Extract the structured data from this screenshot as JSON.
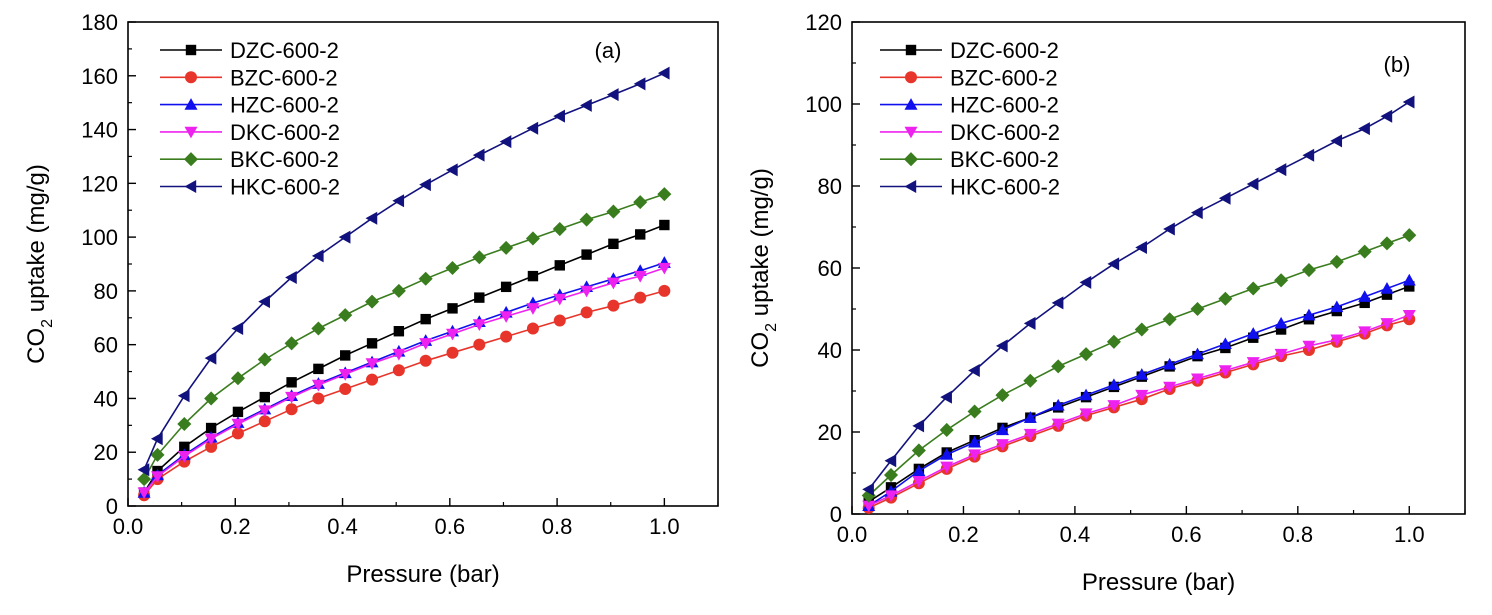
{
  "colors": {
    "DZC-600-2": "#000000",
    "BZC-600-2": "#e8352b",
    "HZC-600-2": "#1010ee",
    "DKC-600-2": "#ee22ee",
    "BKC-600-2": "#3a7d1e",
    "HKC-600-2": "#12127e"
  },
  "markers": {
    "DZC-600-2": "square",
    "BZC-600-2": "circle",
    "HZC-600-2": "triangle-up",
    "DKC-600-2": "triangle-down",
    "BKC-600-2": "diamond",
    "HKC-600-2": "triangle-left"
  },
  "chart_data": [
    {
      "type": "line",
      "panel_label": "(a)",
      "xlabel": "Pressure (bar)",
      "ylabel_main": "CO",
      "ylabel_sub": "2",
      "ylabel_rest": " uptake (mg/g)",
      "xlim": [
        0.0,
        1.1
      ],
      "ylim": [
        0,
        180
      ],
      "xticks": [
        0.0,
        0.2,
        0.4,
        0.6,
        0.8,
        1.0
      ],
      "xtick_labels": [
        "0.0",
        "0.2",
        "0.4",
        "0.6",
        "0.8",
        "1.0"
      ],
      "yticks": [
        0,
        20,
        40,
        60,
        80,
        100,
        120,
        140,
        160,
        180
      ],
      "ytick_labels": [
        "0",
        "20",
        "40",
        "60",
        "80",
        "100",
        "120",
        "140",
        "160",
        "180"
      ],
      "legend_position": "top-left",
      "x": [
        0.03,
        0.055,
        0.105,
        0.155,
        0.205,
        0.255,
        0.305,
        0.355,
        0.405,
        0.455,
        0.505,
        0.555,
        0.605,
        0.655,
        0.705,
        0.755,
        0.805,
        0.855,
        0.905,
        0.955,
        1.0
      ],
      "series": [
        {
          "name": "DZC-600-2",
          "values": [
            5,
            13,
            22,
            29,
            35,
            40.5,
            46,
            51,
            56,
            60.5,
            65,
            69.5,
            73.5,
            77.5,
            81.5,
            85.5,
            89.5,
            93.5,
            97.5,
            101,
            104.5
          ]
        },
        {
          "name": "BZC-600-2",
          "values": [
            4,
            10,
            16.5,
            22,
            27,
            31.5,
            36,
            40,
            43.5,
            47,
            50.5,
            54,
            57,
            60,
            63,
            66,
            69,
            72,
            74.5,
            77.5,
            80
          ]
        },
        {
          "name": "HZC-600-2",
          "values": [
            5,
            11.5,
            19,
            25.5,
            31,
            36,
            41,
            45.5,
            49.5,
            53.5,
            57.5,
            61.5,
            65,
            68.5,
            72,
            75.5,
            78.5,
            81.5,
            84.5,
            87.5,
            90.5
          ]
        },
        {
          "name": "DKC-600-2",
          "values": [
            5,
            11,
            18.5,
            25,
            30.5,
            35.5,
            40.5,
            45,
            49,
            53,
            56.5,
            60.5,
            64,
            67.5,
            70.5,
            73.5,
            77,
            80,
            83,
            85.5,
            88.5
          ]
        },
        {
          "name": "BKC-600-2",
          "values": [
            10,
            19,
            30.5,
            40,
            47.5,
            54.5,
            60.5,
            66,
            71,
            76,
            80,
            84.5,
            88.5,
            92.5,
            96,
            99.5,
            103,
            106.5,
            109.5,
            113,
            116
          ]
        },
        {
          "name": "HKC-600-2",
          "values": [
            13.5,
            25,
            41,
            55,
            66,
            76,
            85,
            93,
            100,
            107,
            113.5,
            119.5,
            125,
            130.5,
            135.5,
            140.5,
            145,
            149,
            153,
            157,
            161
          ]
        }
      ]
    },
    {
      "type": "line",
      "panel_label": "(b)",
      "xlabel": "Pressure (bar)",
      "ylabel_main": "CO",
      "ylabel_sub": "2",
      "ylabel_rest": " uptake (mg/g)",
      "xlim": [
        0.0,
        1.1
      ],
      "ylim": [
        0,
        120
      ],
      "xticks": [
        0.0,
        0.2,
        0.4,
        0.6,
        0.8,
        1.0
      ],
      "xtick_labels": [
        "0.0",
        "0.2",
        "0.4",
        "0.6",
        "0.8",
        "1.0"
      ],
      "yticks": [
        0,
        20,
        40,
        60,
        80,
        100,
        120
      ],
      "ytick_labels": [
        "0",
        "20",
        "40",
        "60",
        "80",
        "100",
        "120"
      ],
      "legend_position": "top-left",
      "x": [
        0.03,
        0.07,
        0.12,
        0.17,
        0.22,
        0.27,
        0.32,
        0.37,
        0.42,
        0.47,
        0.52,
        0.57,
        0.62,
        0.67,
        0.72,
        0.77,
        0.82,
        0.87,
        0.92,
        0.96,
        1.0
      ],
      "series": [
        {
          "name": "DZC-600-2",
          "values": [
            3,
            6.5,
            11,
            15,
            18,
            21,
            23.5,
            26,
            28.5,
            31,
            33.5,
            36,
            38.5,
            40.5,
            43,
            45,
            47.5,
            49.5,
            51.5,
            53.5,
            55.5
          ]
        },
        {
          "name": "BZC-600-2",
          "values": [
            1.5,
            4,
            7.5,
            11,
            14,
            16.5,
            19,
            21.5,
            24,
            26,
            28,
            30.5,
            32.5,
            34.5,
            36.5,
            38.5,
            40,
            42,
            44,
            46,
            47.5
          ]
        },
        {
          "name": "HZC-600-2",
          "values": [
            2,
            5.5,
            10.5,
            14.5,
            17.5,
            20.5,
            23.5,
            26.5,
            29,
            31.5,
            34,
            36.5,
            39,
            41.5,
            44,
            46.5,
            48.5,
            50.5,
            53,
            55,
            57
          ]
        },
        {
          "name": "DKC-600-2",
          "values": [
            2,
            4.5,
            8,
            11.5,
            14.5,
            17,
            19.5,
            22,
            24.5,
            26.5,
            29,
            31,
            33,
            35,
            37,
            39,
            41,
            42.5,
            44.5,
            46.5,
            48.5
          ]
        },
        {
          "name": "BKC-600-2",
          "values": [
            4.5,
            9.5,
            15.5,
            20.5,
            25,
            29,
            32.5,
            36,
            39,
            42,
            45,
            47.5,
            50,
            52.5,
            55,
            57,
            59.5,
            61.5,
            64,
            66,
            68
          ]
        },
        {
          "name": "HKC-600-2",
          "values": [
            6,
            13,
            21.5,
            28.5,
            35,
            41,
            46.5,
            51.5,
            56.5,
            61,
            65,
            69.5,
            73.5,
            77,
            80.5,
            84,
            87.5,
            91,
            94,
            97,
            100.5
          ]
        }
      ]
    }
  ]
}
